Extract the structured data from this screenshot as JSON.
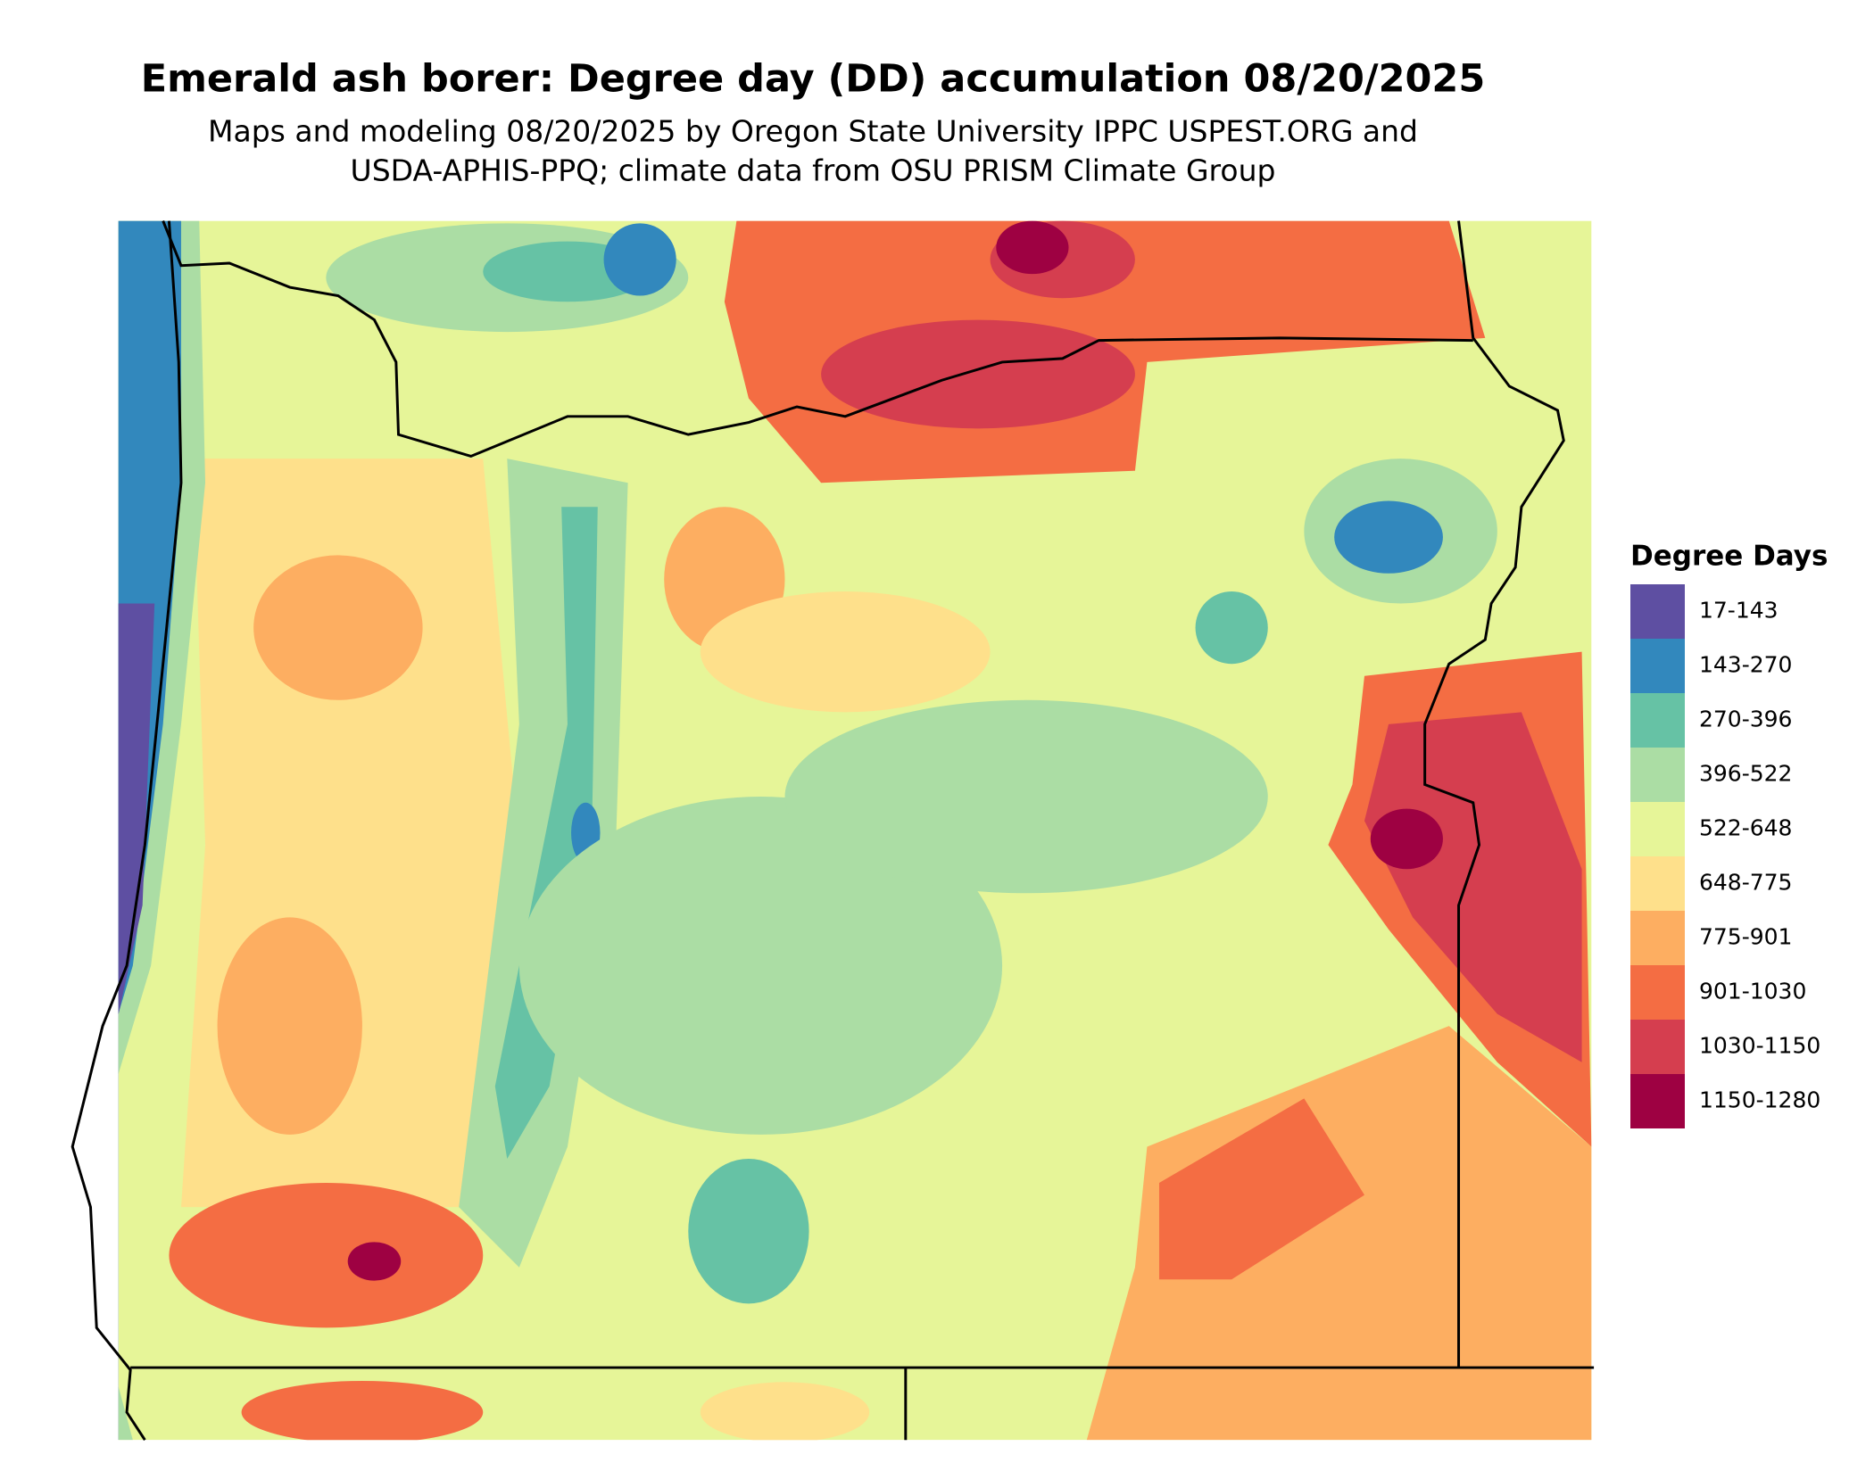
{
  "header": {
    "title": "Emerald ash borer: Degree day (DD) accumulation 08/20/2025",
    "subtitle": [
      "Maps and modeling 08/20/2025 by Oregon State University IPPC USPEST.ORG and",
      "USDA-APHIS-PPQ; climate data from OSU PRISM Climate Group"
    ]
  },
  "legend": {
    "title": "Degree Days",
    "items": [
      {
        "label": "17-143",
        "color": "#5e4fa2"
      },
      {
        "label": "143-270",
        "color": "#3288bd"
      },
      {
        "label": "270-396",
        "color": "#66c2a5"
      },
      {
        "label": "396-522",
        "color": "#abdda4"
      },
      {
        "label": "522-648",
        "color": "#e6f598"
      },
      {
        "label": "648-775",
        "color": "#fee08b"
      },
      {
        "label": "775-901",
        "color": "#fdae61"
      },
      {
        "label": "901-1030",
        "color": "#f46d43"
      },
      {
        "label": "1030-1150",
        "color": "#d53e4f"
      },
      {
        "label": "1150-1280",
        "color": "#9e0142"
      }
    ]
  }
}
